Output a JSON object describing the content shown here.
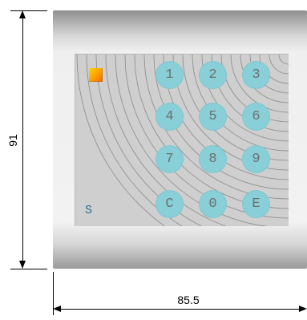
{
  "dimensions": {
    "height_label": "91",
    "width_label": "85.5"
  },
  "device": {
    "brand_letter": "S",
    "logo_color": "#ffb000"
  },
  "keypad": {
    "keys": [
      "1",
      "2",
      "3",
      "4",
      "5",
      "6",
      "7",
      "8",
      "9",
      "C",
      "0",
      "E"
    ],
    "key_color": "#88cfd8",
    "text_color": "#6e6e6e"
  },
  "colors": {
    "panel": "#cfcfcf",
    "arcs": "#8a8a8a",
    "dimension_lines": "#000000"
  }
}
